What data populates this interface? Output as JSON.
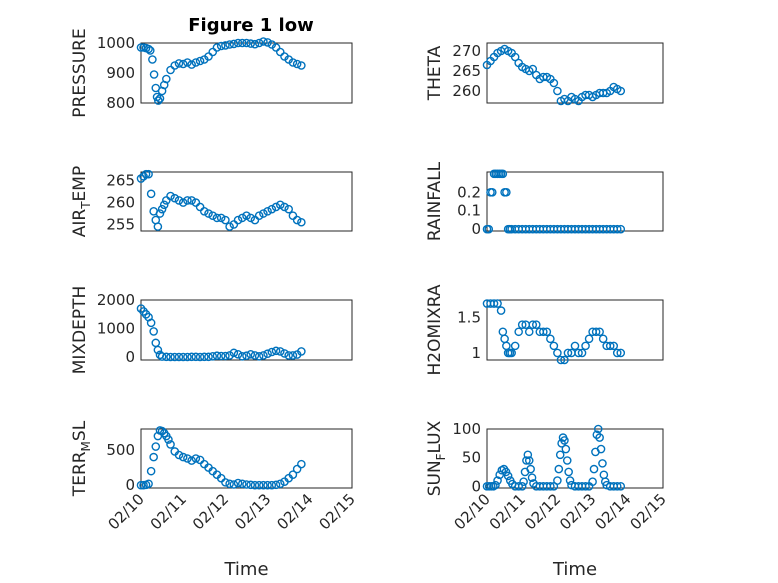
{
  "figure_title": "Figure 1 low",
  "x_ticks": [
    "02/10",
    "02/11",
    "02/12",
    "02/13",
    "02/14",
    "02/15"
  ],
  "x_label": "Time",
  "marker_color": "#0072BD",
  "chart_data": [
    {
      "type": "scatter",
      "title": "Figure 1 low",
      "ylabel": "PRESSURE",
      "ylabel_sub": "",
      "ylabel_tail": "",
      "ylim": [
        800,
        1000
      ],
      "yticks": [
        800,
        900,
        1000
      ],
      "xlim": [
        0,
        5
      ],
      "x": [
        0,
        0.06,
        0.12,
        0.18,
        0.22,
        0.27,
        0.31,
        0.35,
        0.38,
        0.41,
        0.45,
        0.5,
        0.55,
        0.6,
        0.7,
        0.8,
        0.9,
        1,
        1.1,
        1.2,
        1.3,
        1.4,
        1.5,
        1.6,
        1.7,
        1.8,
        1.9,
        2,
        2.1,
        2.2,
        2.3,
        2.4,
        2.5,
        2.6,
        2.7,
        2.8,
        2.9,
        3,
        3.1,
        3.2,
        3.3,
        3.4,
        3.5,
        3.6,
        3.7,
        3.8
      ],
      "y": [
        985,
        985,
        983,
        980,
        975,
        945,
        895,
        850,
        820,
        808,
        815,
        840,
        860,
        880,
        910,
        925,
        932,
        930,
        935,
        928,
        935,
        940,
        945,
        955,
        970,
        985,
        990,
        992,
        995,
        997,
        1000,
        1000,
        1000,
        998,
        996,
        1000,
        1005,
        1002,
        995,
        985,
        970,
        955,
        945,
        935,
        930,
        925
      ]
    },
    {
      "type": "scatter",
      "ylabel": "THETA",
      "ylabel_sub": "",
      "ylabel_tail": "",
      "ylim": [
        257,
        272
      ],
      "yticks": [
        260,
        265,
        270
      ],
      "xlim": [
        0,
        5
      ],
      "x": [
        0,
        0.1,
        0.2,
        0.3,
        0.4,
        0.5,
        0.6,
        0.7,
        0.8,
        0.9,
        1,
        1.1,
        1.2,
        1.3,
        1.4,
        1.5,
        1.6,
        1.7,
        1.8,
        1.9,
        2,
        2.1,
        2.2,
        2.3,
        2.4,
        2.5,
        2.6,
        2.7,
        2.8,
        2.9,
        3,
        3.1,
        3.2,
        3.3,
        3.4,
        3.5,
        3.6,
        3.7,
        3.8
      ],
      "y": [
        266.5,
        267.5,
        268.5,
        269.5,
        270,
        270.5,
        270,
        269.5,
        268.5,
        267,
        266,
        265.5,
        265,
        265.5,
        264,
        263,
        263.5,
        263.5,
        263,
        262,
        260,
        257.5,
        258,
        257.5,
        258.5,
        258,
        257.5,
        258.5,
        259,
        259,
        258.5,
        259,
        259.5,
        259.5,
        259.5,
        260,
        261,
        260.5,
        260
      ]
    },
    {
      "type": "scatter",
      "ylabel": "AIR",
      "ylabel_sub": "T",
      "ylabel_tail": "EMP",
      "ylim": [
        253.5,
        267
      ],
      "yticks": [
        255,
        260,
        265
      ],
      "xlim": [
        0,
        5
      ],
      "x": [
        0,
        0.06,
        0.12,
        0.18,
        0.24,
        0.3,
        0.35,
        0.4,
        0.45,
        0.5,
        0.55,
        0.6,
        0.7,
        0.8,
        0.9,
        1,
        1.1,
        1.2,
        1.3,
        1.4,
        1.5,
        1.6,
        1.7,
        1.8,
        1.9,
        2,
        2.1,
        2.2,
        2.3,
        2.4,
        2.5,
        2.6,
        2.7,
        2.8,
        2.9,
        3,
        3.1,
        3.2,
        3.3,
        3.4,
        3.5,
        3.6,
        3.7,
        3.8
      ],
      "y": [
        265.5,
        266,
        266.5,
        266.5,
        262,
        258,
        256,
        254.5,
        257.5,
        258.5,
        259.5,
        260.5,
        261.5,
        261,
        260.5,
        260,
        260.5,
        260.5,
        260,
        259,
        258,
        257.5,
        257,
        256.5,
        256.5,
        256,
        254.5,
        255,
        256,
        256.5,
        257,
        256.5,
        256,
        257,
        257.5,
        258,
        258.5,
        259,
        259.5,
        259,
        258.5,
        257,
        256,
        255.5
      ]
    },
    {
      "type": "scatter",
      "ylabel": "RAINFALL",
      "ylabel_sub": "",
      "ylabel_tail": "",
      "ylim": [
        -0.01,
        0.31
      ],
      "yticks": [
        0,
        0.1,
        0.2
      ],
      "xlim": [
        0,
        5
      ],
      "x": [
        0,
        0.05,
        0.1,
        0.15,
        0.2,
        0.25,
        0.3,
        0.35,
        0.4,
        0.45,
        0.5,
        0.55,
        0.6,
        0.65,
        0.7,
        0.8,
        0.9,
        1,
        1.1,
        1.2,
        1.3,
        1.4,
        1.5,
        1.6,
        1.7,
        1.8,
        1.9,
        2,
        2.1,
        2.2,
        2.3,
        2.4,
        2.5,
        2.6,
        2.7,
        2.8,
        2.9,
        3,
        3.1,
        3.2,
        3.3,
        3.4,
        3.5,
        3.6,
        3.7,
        3.8
      ],
      "y": [
        0,
        0,
        0.2,
        0.2,
        0.3,
        0.3,
        0.3,
        0.3,
        0.3,
        0.3,
        0.2,
        0.2,
        0,
        0,
        0,
        0,
        0,
        0,
        0,
        0,
        0,
        0,
        0,
        0,
        0,
        0,
        0,
        0,
        0,
        0,
        0,
        0,
        0,
        0,
        0,
        0,
        0,
        0,
        0,
        0,
        0,
        0,
        0,
        0,
        0,
        0
      ]
    },
    {
      "type": "scatter",
      "ylabel": "MIXDEPTH",
      "ylabel_sub": "",
      "ylabel_tail": "",
      "ylim": [
        -100,
        2000
      ],
      "yticks": [
        0,
        1000,
        2000
      ],
      "xlim": [
        0,
        5
      ],
      "x": [
        0,
        0.06,
        0.12,
        0.18,
        0.24,
        0.3,
        0.35,
        0.4,
        0.45,
        0.5,
        0.6,
        0.7,
        0.8,
        0.9,
        1,
        1.1,
        1.2,
        1.3,
        1.4,
        1.5,
        1.6,
        1.7,
        1.8,
        1.9,
        2,
        2.1,
        2.2,
        2.3,
        2.4,
        2.5,
        2.6,
        2.7,
        2.8,
        2.9,
        3,
        3.1,
        3.2,
        3.3,
        3.4,
        3.5,
        3.6,
        3.7,
        3.8
      ],
      "y": [
        1700,
        1600,
        1500,
        1400,
        1200,
        900,
        500,
        250,
        80,
        20,
        10,
        5,
        5,
        5,
        5,
        5,
        10,
        10,
        5,
        10,
        10,
        30,
        50,
        40,
        40,
        60,
        150,
        100,
        30,
        50,
        100,
        60,
        30,
        60,
        120,
        180,
        220,
        200,
        130,
        60,
        60,
        90,
        200
      ]
    },
    {
      "type": "scatter",
      "ylabel": "H2OMIXRA",
      "ylabel_sub": "",
      "ylabel_tail": "",
      "ylim": [
        0.9,
        1.75
      ],
      "yticks": [
        1,
        1.5
      ],
      "xlim": [
        0,
        5
      ],
      "x": [
        0,
        0.1,
        0.2,
        0.3,
        0.4,
        0.45,
        0.5,
        0.55,
        0.6,
        0.65,
        0.7,
        0.8,
        0.9,
        1,
        1.1,
        1.2,
        1.3,
        1.4,
        1.5,
        1.6,
        1.7,
        1.8,
        1.9,
        2,
        2.1,
        2.2,
        2.3,
        2.4,
        2.5,
        2.6,
        2.7,
        2.8,
        2.9,
        3,
        3.1,
        3.2,
        3.3,
        3.4,
        3.5,
        3.6,
        3.7,
        3.8
      ],
      "y": [
        1.7,
        1.7,
        1.7,
        1.7,
        1.6,
        1.3,
        1.2,
        1.1,
        1,
        1,
        1,
        1.1,
        1.3,
        1.4,
        1.4,
        1.3,
        1.4,
        1.4,
        1.3,
        1.3,
        1.3,
        1.2,
        1.1,
        1,
        0.9,
        0.9,
        1,
        1,
        1.1,
        1,
        1,
        1.1,
        1.2,
        1.3,
        1.3,
        1.3,
        1.2,
        1.1,
        1.1,
        1.1,
        1,
        1
      ]
    },
    {
      "type": "scatter",
      "ylabel": "TERR",
      "ylabel_sub": "M",
      "ylabel_tail": "SL",
      "ylim": [
        -40,
        800
      ],
      "yticks": [
        0,
        500
      ],
      "xlim": [
        0,
        5
      ],
      "x": [
        0,
        0.06,
        0.12,
        0.18,
        0.24,
        0.3,
        0.35,
        0.4,
        0.45,
        0.5,
        0.55,
        0.6,
        0.65,
        0.7,
        0.8,
        0.9,
        1,
        1.1,
        1.2,
        1.3,
        1.4,
        1.5,
        1.6,
        1.7,
        1.8,
        1.9,
        2,
        2.1,
        2.2,
        2.3,
        2.4,
        2.5,
        2.6,
        2.7,
        2.8,
        2.9,
        3,
        3.1,
        3.2,
        3.3,
        3.4,
        3.5,
        3.6,
        3.7,
        3.8
      ],
      "y": [
        0,
        0,
        5,
        20,
        200,
        400,
        550,
        700,
        780,
        770,
        740,
        700,
        650,
        580,
        480,
        430,
        400,
        380,
        350,
        380,
        360,
        300,
        250,
        200,
        150,
        100,
        40,
        20,
        10,
        30,
        20,
        10,
        5,
        0,
        0,
        0,
        0,
        0,
        5,
        20,
        50,
        100,
        150,
        230,
        300
      ]
    },
    {
      "type": "scatter",
      "ylabel": "SUN",
      "ylabel_sub": "F",
      "ylabel_tail": "LUX",
      "ylim": [
        -3,
        100
      ],
      "yticks": [
        0,
        50,
        100
      ],
      "xlim": [
        0,
        5
      ],
      "x": [
        0,
        0.06,
        0.12,
        0.18,
        0.24,
        0.3,
        0.36,
        0.42,
        0.48,
        0.54,
        0.6,
        0.66,
        0.72,
        0.8,
        0.9,
        1,
        1.04,
        1.08,
        1.12,
        1.16,
        1.2,
        1.24,
        1.28,
        1.32,
        1.4,
        1.5,
        1.6,
        1.7,
        1.8,
        1.9,
        2,
        2.04,
        2.08,
        2.12,
        2.16,
        2.2,
        2.24,
        2.28,
        2.32,
        2.36,
        2.4,
        2.5,
        2.6,
        2.7,
        2.8,
        2.9,
        3,
        3.04,
        3.08,
        3.12,
        3.16,
        3.2,
        3.24,
        3.28,
        3.32,
        3.36,
        3.4,
        3.5,
        3.6,
        3.7,
        3.8
      ],
      "y": [
        0,
        0,
        0,
        0,
        2,
        10,
        20,
        28,
        30,
        25,
        18,
        10,
        4,
        0,
        0,
        0,
        8,
        25,
        45,
        55,
        45,
        30,
        15,
        5,
        0,
        0,
        0,
        0,
        0,
        0,
        10,
        30,
        55,
        75,
        85,
        80,
        65,
        45,
        25,
        10,
        2,
        0,
        0,
        0,
        0,
        0,
        8,
        30,
        60,
        90,
        100,
        85,
        65,
        40,
        20,
        8,
        2,
        0,
        0,
        0,
        0
      ]
    }
  ]
}
